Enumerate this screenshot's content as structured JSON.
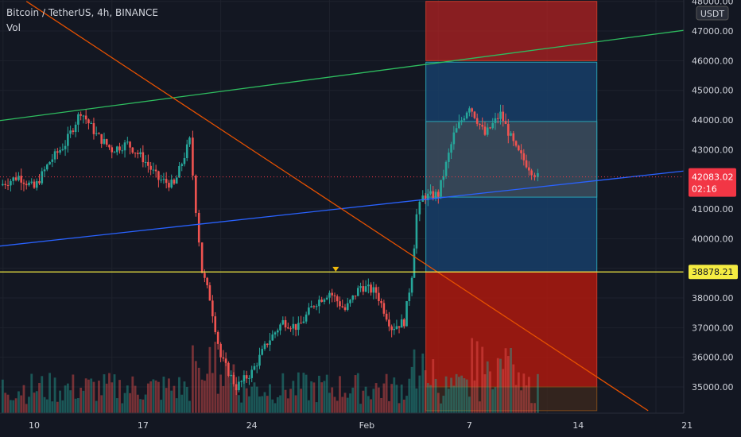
{
  "header": {
    "title": "Bitcoin / TetherUS, 4h, BINANCE",
    "vol_label": "Vol"
  },
  "currency_label": "USDT",
  "colors": {
    "background": "#131722",
    "up": "#26a69a",
    "down": "#ef5350",
    "green_trend": "#2ebd5f",
    "blue_trend": "#2962ff",
    "orange_trend": "#e65100",
    "support": "#f5ec42",
    "current_price": "#f23645"
  },
  "chart_data": {
    "type": "candlestick",
    "symbol": "BTCUSDT",
    "timeframe": "4h",
    "exchange": "BINANCE",
    "ylim": [
      34200,
      48000
    ],
    "y_ticks": [
      "35000.00",
      "36000.00",
      "37000.00",
      "38000.00",
      "39000.00",
      "40000.00",
      "41000.00",
      "43000.00",
      "44000.00",
      "45000.00",
      "46000.00",
      "47000.00",
      "48000.00"
    ],
    "x_ticks": [
      "10",
      "17",
      "24",
      "Feb",
      "7",
      "14",
      "21"
    ],
    "current_price": "42083.02",
    "countdown": "02:16",
    "support_label": "38878.21",
    "support_level": 38878.21,
    "anchors": [
      {
        "d": -2.2,
        "p": 41800
      },
      {
        "d": -1.0,
        "p": 42100
      },
      {
        "d": 0.0,
        "p": 41700
      },
      {
        "d": 1.0,
        "p": 42600
      },
      {
        "d": 2.0,
        "p": 43200
      },
      {
        "d": 3.0,
        "p": 44300
      },
      {
        "d": 4.0,
        "p": 43500
      },
      {
        "d": 5.0,
        "p": 43000
      },
      {
        "d": 6.0,
        "p": 43200
      },
      {
        "d": 7.0,
        "p": 42700
      },
      {
        "d": 8.0,
        "p": 42000
      },
      {
        "d": 9.0,
        "p": 41800
      },
      {
        "d": 10.0,
        "p": 43300
      },
      {
        "d": 10.4,
        "p": 41000
      },
      {
        "d": 10.8,
        "p": 38900
      },
      {
        "d": 11.3,
        "p": 38000
      },
      {
        "d": 12.0,
        "p": 36000
      },
      {
        "d": 13.0,
        "p": 35000
      },
      {
        "d": 14.0,
        "p": 35500
      },
      {
        "d": 15.0,
        "p": 36500
      },
      {
        "d": 16.0,
        "p": 37200
      },
      {
        "d": 17.0,
        "p": 37000
      },
      {
        "d": 18.0,
        "p": 37800
      },
      {
        "d": 19.0,
        "p": 38200
      },
      {
        "d": 20.0,
        "p": 37600
      },
      {
        "d": 21.0,
        "p": 38400
      },
      {
        "d": 22.0,
        "p": 38200
      },
      {
        "d": 23.0,
        "p": 37000
      },
      {
        "d": 23.8,
        "p": 37200
      },
      {
        "d": 24.3,
        "p": 38800
      },
      {
        "d": 24.6,
        "p": 40800
      },
      {
        "d": 25.0,
        "p": 41400
      },
      {
        "d": 26.0,
        "p": 41500
      },
      {
        "d": 27.0,
        "p": 43500
      },
      {
        "d": 28.0,
        "p": 44500
      },
      {
        "d": 29.0,
        "p": 43500
      },
      {
        "d": 30.0,
        "p": 44200
      },
      {
        "d": 31.0,
        "p": 43000
      },
      {
        "d": 32.0,
        "p": 42300
      },
      {
        "d": 32.4,
        "p": 42080
      }
    ],
    "volume_max": 100,
    "trendlines": [
      {
        "name": "green",
        "from": {
          "d": -2.2,
          "p": 43980
        },
        "to": {
          "d": 43.2,
          "p": 47120
        }
      },
      {
        "name": "blue",
        "from": {
          "d": -2.2,
          "p": 39750
        },
        "to": {
          "d": 43.2,
          "p": 42360
        }
      },
      {
        "name": "orange",
        "from": {
          "d": -0.5,
          "p": 48000
        },
        "to": {
          "d": 39.5,
          "p": 34200
        }
      }
    ],
    "position_boxes": [
      {
        "kind": "target",
        "d0": 25.2,
        "d1": 36.2,
        "top": 48000,
        "bottom": 46000
      },
      {
        "kind": "profit",
        "d0": 25.2,
        "d1": 36.2,
        "top": 45950,
        "bottom": 38880
      },
      {
        "kind": "entry",
        "d0": 25.2,
        "d1": 36.2,
        "top": 43950,
        "bottom": 41400
      },
      {
        "kind": "loss",
        "d0": 25.2,
        "d1": 36.2,
        "top": 38880,
        "bottom": 35000
      },
      {
        "kind": "loss-tail",
        "d0": 25.2,
        "d1": 36.2,
        "top": 35000,
        "bottom": 34200
      }
    ]
  }
}
